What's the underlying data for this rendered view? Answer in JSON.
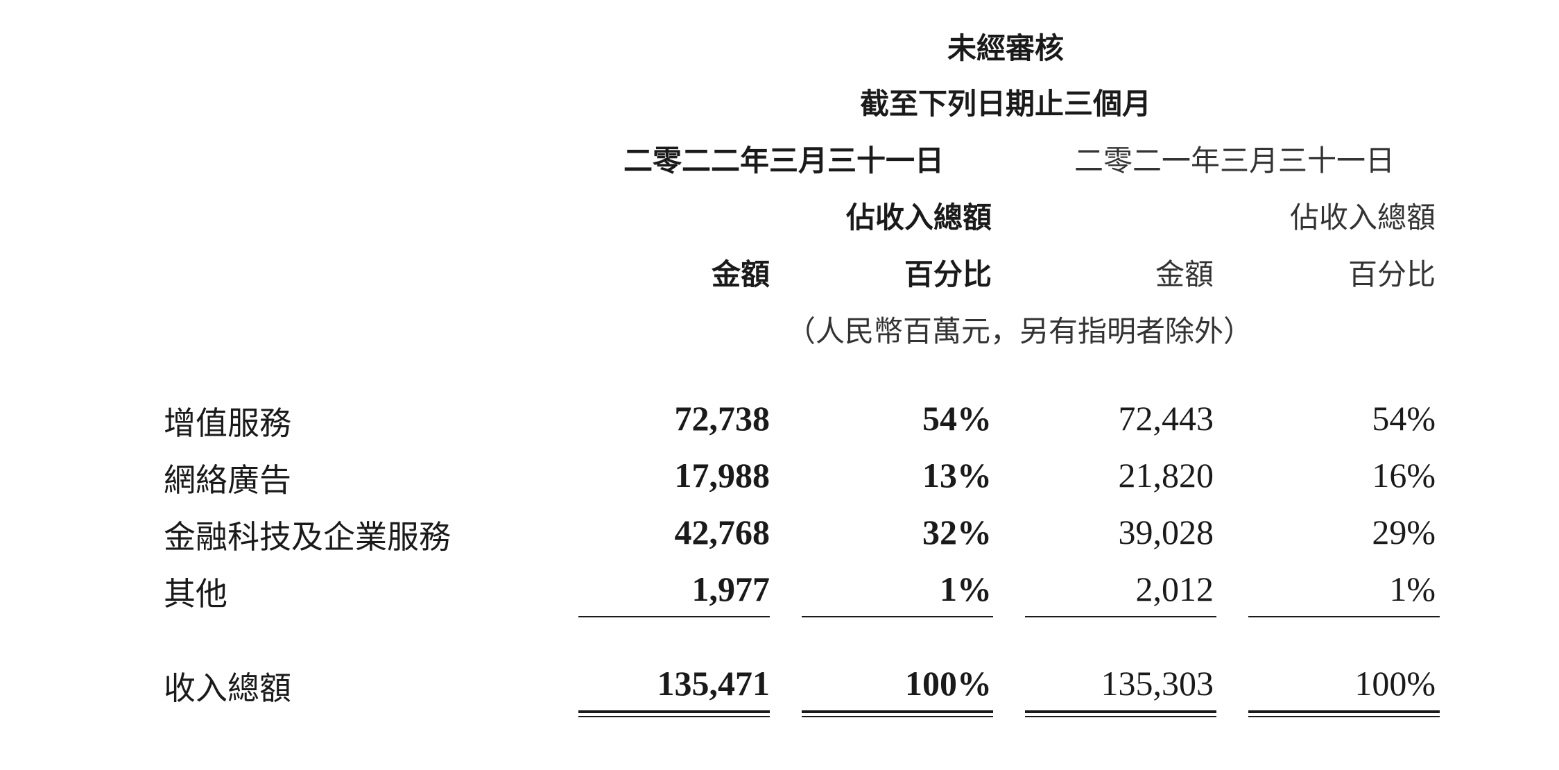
{
  "header": {
    "line1": "未經審核",
    "line2": "截至下列日期止三個月",
    "period_2022": "二零二二年三月三十一日",
    "period_2021": "二零二一年三月三十一日",
    "pct_of_revenue_2022": "佔收入總額",
    "pct_of_revenue_2021": "佔收入總額",
    "amount_2022": "金額",
    "percent_2022": "百分比",
    "amount_2021": "金額",
    "percent_2021": "百分比",
    "unit_note": "（人民幣百萬元，另有指明者除外）"
  },
  "rows": [
    {
      "label": "增值服務",
      "amount_2022": "72,738",
      "pct_2022": "54%",
      "amount_2021": "72,443",
      "pct_2021": "54%"
    },
    {
      "label": "網絡廣告",
      "amount_2022": "17,988",
      "pct_2022": "13%",
      "amount_2021": "21,820",
      "pct_2021": "16%"
    },
    {
      "label": "金融科技及企業服務",
      "amount_2022": "42,768",
      "pct_2022": "32%",
      "amount_2021": "39,028",
      "pct_2021": "29%"
    },
    {
      "label": "其他",
      "amount_2022": "1,977",
      "pct_2022": "1%",
      "amount_2021": "2,012",
      "pct_2021": "1%"
    }
  ],
  "total": {
    "label": "收入總額",
    "amount_2022": "135,471",
    "pct_2022": "100%",
    "amount_2021": "135,303",
    "pct_2021": "100%"
  }
}
